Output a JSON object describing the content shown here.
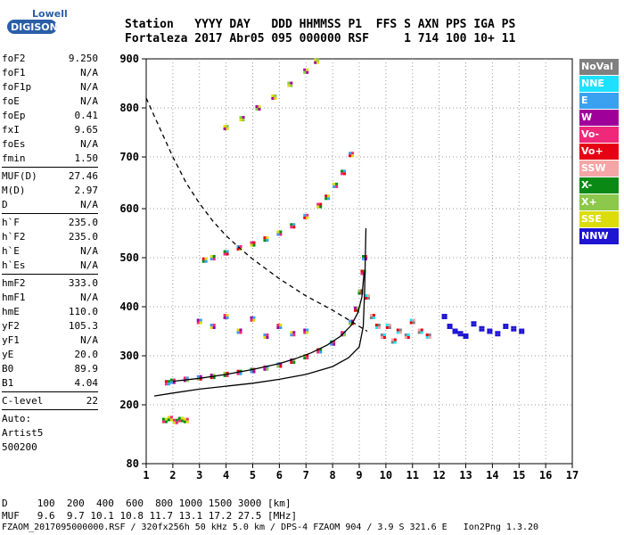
{
  "logo": {
    "line1": "Lowell",
    "line2": "DIGISONDE"
  },
  "header": {
    "line1": "Station   YYYY DAY   DDD HHMMSS P1  FFS S AXN PPS IGA PS",
    "line2": "Fortaleza 2017 Abr05 095 000000 RSF     1 714 100 10+ 11"
  },
  "params_groups": [
    [
      {
        "name": "foF2",
        "value": "9.250"
      },
      {
        "name": "foF1",
        "value": "N/A"
      },
      {
        "name": "foF1p",
        "value": "N/A"
      },
      {
        "name": "foE",
        "value": "N/A"
      },
      {
        "name": "foEp",
        "value": "0.41"
      },
      {
        "name": "fxI",
        "value": "9.65"
      },
      {
        "name": "foEs",
        "value": "N/A"
      },
      {
        "name": "fmin",
        "value": "1.50"
      }
    ],
    [
      {
        "name": "MUF(D)",
        "value": "27.46"
      },
      {
        "name": "M(D)",
        "value": "2.97"
      },
      {
        "name": "D",
        "value": "N/A"
      }
    ],
    [
      {
        "name": "h`F",
        "value": "235.0"
      },
      {
        "name": "h`F2",
        "value": "235.0"
      },
      {
        "name": "h`E",
        "value": "N/A"
      },
      {
        "name": "h`Es",
        "value": "N/A"
      }
    ],
    [
      {
        "name": "hmF2",
        "value": "333.0"
      },
      {
        "name": "hmF1",
        "value": "N/A"
      },
      {
        "name": "hmE",
        "value": "110.0"
      },
      {
        "name": "yF2",
        "value": "105.3"
      },
      {
        "name": "yF1",
        "value": "N/A"
      },
      {
        "name": "yE",
        "value": "20.0"
      },
      {
        "name": "B0",
        "value": "89.9"
      },
      {
        "name": "B1",
        "value": "4.04"
      }
    ],
    [
      {
        "name": "C-level",
        "value": "22"
      }
    ]
  ],
  "auto": [
    "Auto:",
    "Artist5",
    "500200"
  ],
  "legend": [
    {
      "label": "NoVal",
      "color": "#808080"
    },
    {
      "label": "NNE",
      "color": "#1ee1ff"
    },
    {
      "label": "E",
      "color": "#3aa0f0"
    },
    {
      "label": "W",
      "color": "#a0009a"
    },
    {
      "label": "Vo-",
      "color": "#f0287a"
    },
    {
      "label": "Vo+",
      "color": "#e60014"
    },
    {
      "label": "SSW",
      "color": "#f5a5a5"
    },
    {
      "label": "X-",
      "color": "#0a8a14"
    },
    {
      "label": "X+",
      "color": "#8cc84b"
    },
    {
      "label": "SSE",
      "color": "#dcdc0a"
    },
    {
      "label": "NNW",
      "color": "#1e14d2"
    }
  ],
  "footer": {
    "d_line": "D     100  200  400  600  800 1000 1500 3000 [km]",
    "muf_line": "MUF   9.6  9.7 10.1 10.8 11.7 13.1 17.2 27.5 [MHz]",
    "file_line": "FZAOM_2017095000000.RSF / 320fx256h 50 kHz 5.0 km / DPS-4 FZAOM 904 / 3.9 S 321.6 E   Ion2Png 1.3.20"
  },
  "chart_data": {
    "type": "scatter",
    "xlim": [
      1,
      17
    ],
    "ylim": [
      80,
      900
    ],
    "xticks": [
      1,
      2,
      3,
      4,
      5,
      6,
      7,
      8,
      9,
      10,
      11,
      12,
      13,
      14,
      15,
      16,
      17
    ],
    "yticks": [
      80,
      200,
      300,
      400,
      500,
      600,
      700,
      800,
      900
    ],
    "grid": true,
    "legend_position": "right",
    "curves": [
      {
        "style": "solid",
        "points": [
          [
            1.3,
            218
          ],
          [
            2,
            224
          ],
          [
            3,
            232
          ],
          [
            4,
            238
          ],
          [
            5,
            244
          ],
          [
            6,
            252
          ],
          [
            7,
            262
          ],
          [
            8,
            278
          ],
          [
            8.6,
            296
          ],
          [
            9.0,
            318
          ],
          [
            9.15,
            360
          ],
          [
            9.2,
            430
          ],
          [
            9.25,
            560
          ]
        ]
      },
      {
        "style": "solid",
        "points": [
          [
            2,
            248
          ],
          [
            3,
            254
          ],
          [
            4,
            262
          ],
          [
            5,
            272
          ],
          [
            6,
            284
          ],
          [
            6.6,
            294
          ],
          [
            7.2,
            306
          ],
          [
            7.8,
            322
          ],
          [
            8.3,
            340
          ],
          [
            8.7,
            362
          ],
          [
            8.95,
            388
          ],
          [
            9.1,
            420
          ],
          [
            9.18,
            470
          ]
        ]
      },
      {
        "style": "dashed",
        "points": [
          [
            1.0,
            820
          ],
          [
            1.5,
            760
          ],
          [
            2,
            700
          ],
          [
            2.5,
            650
          ],
          [
            3,
            610
          ],
          [
            3.5,
            575
          ],
          [
            4,
            545
          ],
          [
            4.5,
            520
          ],
          [
            5,
            497
          ],
          [
            6,
            457
          ],
          [
            7,
            422
          ],
          [
            8,
            393
          ],
          [
            9,
            360
          ],
          [
            9.3,
            350
          ]
        ]
      }
    ],
    "traces": [
      {
        "name": "F2 O-trace",
        "colors": [
          "#e60014",
          "#0a8a14",
          "#f0287a",
          "#3aa0f0",
          "#a0009a",
          "#8cc84b"
        ],
        "points": [
          [
            1.8,
            245
          ],
          [
            2,
            248
          ],
          [
            2.5,
            252
          ],
          [
            3,
            255
          ],
          [
            3.5,
            258
          ],
          [
            4,
            262
          ],
          [
            4.5,
            266
          ],
          [
            5,
            270
          ],
          [
            5.5,
            275
          ],
          [
            6,
            281
          ],
          [
            6.5,
            289
          ],
          [
            7,
            298
          ],
          [
            7.5,
            310
          ],
          [
            8,
            326
          ],
          [
            8.4,
            345
          ],
          [
            8.7,
            368
          ],
          [
            8.9,
            395
          ],
          [
            9.05,
            430
          ],
          [
            9.15,
            470
          ],
          [
            9.2,
            500
          ]
        ]
      },
      {
        "name": "F2 multi-hop",
        "colors": [
          "#e60014",
          "#dcdc0a",
          "#0a8a14",
          "#3aa0f0",
          "#f0287a"
        ],
        "points": [
          [
            3.2,
            495
          ],
          [
            3.5,
            500
          ],
          [
            4,
            510
          ],
          [
            4.5,
            520
          ],
          [
            5,
            528
          ],
          [
            5.5,
            538
          ],
          [
            6,
            550
          ],
          [
            6.5,
            565
          ],
          [
            7,
            584
          ],
          [
            7.5,
            606
          ],
          [
            7.8,
            622
          ],
          [
            8.1,
            645
          ],
          [
            8.4,
            670
          ],
          [
            8.7,
            705
          ]
        ]
      },
      {
        "name": "F2 third-hop",
        "colors": [
          "#dcdc0a",
          "#8cc84b",
          "#a0009a"
        ],
        "points": [
          [
            4,
            760
          ],
          [
            4.6,
            778
          ],
          [
            5.2,
            800
          ],
          [
            5.8,
            822
          ],
          [
            6.4,
            848
          ],
          [
            7,
            875
          ],
          [
            7.4,
            895
          ]
        ]
      },
      {
        "name": "spread-F",
        "colors": [
          "#1ee1ff",
          "#f5a5a5",
          "#e60014",
          "#808080"
        ],
        "points": [
          [
            9.3,
            420
          ],
          [
            9.5,
            380
          ],
          [
            9.7,
            360
          ],
          [
            9.9,
            340
          ],
          [
            10.1,
            360
          ],
          [
            10.3,
            330
          ],
          [
            10.5,
            350
          ],
          [
            10.8,
            340
          ],
          [
            11,
            370
          ],
          [
            11.3,
            350
          ],
          [
            11.6,
            340
          ]
        ]
      },
      {
        "name": "NNW echoes",
        "colors": [
          "#1e14d2"
        ],
        "points": [
          [
            12.2,
            380
          ],
          [
            12.4,
            360
          ],
          [
            12.6,
            350
          ],
          [
            12.8,
            345
          ],
          [
            13,
            340
          ],
          [
            13.3,
            365
          ],
          [
            13.6,
            355
          ],
          [
            13.9,
            350
          ],
          [
            14.2,
            345
          ],
          [
            14.5,
            360
          ],
          [
            14.8,
            355
          ],
          [
            15.1,
            350
          ]
        ]
      },
      {
        "name": "low spread",
        "colors": [
          "#a0009a",
          "#3aa0f0",
          "#f0287a",
          "#dcdc0a"
        ],
        "points": [
          [
            3,
            370
          ],
          [
            3.5,
            360
          ],
          [
            4,
            380
          ],
          [
            4.5,
            350
          ],
          [
            5,
            375
          ],
          [
            5.5,
            340
          ],
          [
            6,
            360
          ],
          [
            6.5,
            345
          ],
          [
            7,
            350
          ]
        ]
      },
      {
        "name": "E echoes",
        "colors": [
          "#0a8a14",
          "#dcdc0a",
          "#f0287a"
        ],
        "points": [
          [
            1.7,
            168
          ],
          [
            1.9,
            172
          ],
          [
            2.1,
            166
          ],
          [
            2.3,
            170
          ],
          [
            2.5,
            168
          ]
        ]
      }
    ]
  }
}
